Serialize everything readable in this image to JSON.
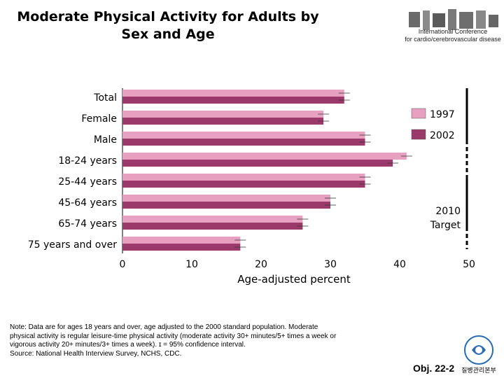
{
  "page": {
    "title_line1": "Moderate Physical Activity for Adults by",
    "title_line2": "Sex and Age",
    "conference_line1": "International Conference",
    "conference_line2": "for cardio/cerebrovascular disease",
    "note_line1": "Note:  Data are for ages 18 years and over, age adjusted to the 2000 standard population. Moderate",
    "note_line2": "physical activity is regular leisure-time physical activity (moderate activity 30+ minutes/5+ times a week or",
    "note_line3": "vigorous activity 20+ minutes/3+ times a week). ɪ = 95% confidence interval.",
    "note_line4": "Source: National Health Interview Survey, NCHS, CDC.",
    "obj_label": "Obj. 22-2",
    "seal_text": "질병관리본부"
  },
  "chart_data": {
    "type": "bar",
    "orientation": "horizontal",
    "categories": [
      "Total",
      "Female",
      "Male",
      "18-24 years",
      "25-44 years",
      "45-64 years",
      "65-74 years",
      "75 years and over"
    ],
    "series": [
      {
        "name": "1997",
        "color": "#e8a0c0",
        "values": [
          32,
          29,
          35,
          41,
          35,
          30,
          26,
          17
        ]
      },
      {
        "name": "2002",
        "color": "#9b3a6a",
        "values": [
          32,
          29,
          35,
          39,
          35,
          30,
          26,
          17
        ]
      }
    ],
    "xlabel": "Age-adjusted percent",
    "xticks": [
      0,
      10,
      20,
      30,
      40,
      50
    ],
    "xlim": [
      0,
      50
    ],
    "target_label_line1": "2010",
    "target_label_line2": "Target",
    "target_value": 50,
    "legend_position": "right"
  }
}
